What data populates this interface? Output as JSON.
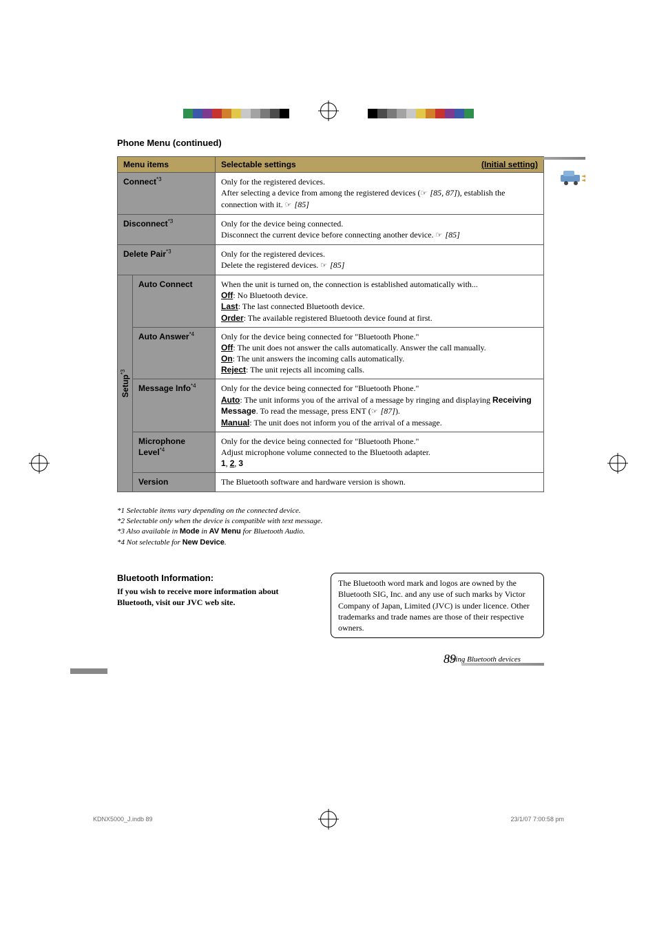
{
  "section_title": "Phone Menu (continued)",
  "header": {
    "col1": "Menu items",
    "col2": "Selectable settings",
    "initial": "(Initial setting)"
  },
  "rows": {
    "connect": {
      "label": "Connect",
      "sup": "*3",
      "l1": "Only for the registered devices.",
      "l2a": "After selecting a device from among the registered devices (",
      "l2b": " [85, 87]",
      "l2c": "), establish the connection with it. ",
      "l2d": " [85]"
    },
    "disconnect": {
      "label": "Disconnect",
      "sup": "*3",
      "l1": "Only for the device being connected.",
      "l2a": "Disconnect the current device before connecting another device. ",
      "l2b": " [85]"
    },
    "deletepair": {
      "label": "Delete Pair",
      "sup": "*3",
      "l1": "Only for the registered devices.",
      "l2a": "Delete the registered devices. ",
      "l2b": " [85]"
    },
    "setup_label": "Setup",
    "setup_sup": "*3",
    "autoconnect": {
      "label": "Auto Connect",
      "l1": "When the unit is turned on, the connection is established automatically with...",
      "off_k": "Off",
      "off_v": ": No Bluetooth device.",
      "last_k": "Last",
      "last_v": ": The last connected Bluetooth device.",
      "order_k": "Order",
      "order_v": ": The available registered Bluetooth device found at first."
    },
    "autoanswer": {
      "label": "Auto Answer",
      "sup": "*4",
      "l1": "Only for the device being connected for \"Bluetooth Phone.\"",
      "off_k": "Off",
      "off_v": ": The unit does not answer the calls automatically. Answer the call manually.",
      "on_k": "On",
      "on_v": ": The unit answers the incoming calls automatically.",
      "rej_k": "Reject",
      "rej_v": ": The unit rejects all incoming calls."
    },
    "messageinfo": {
      "label": "Message Info",
      "sup": "*4",
      "l1": "Only for the device being connected for \"Bluetooth Phone.\"",
      "auto_k": "Auto",
      "auto_v1": ": The unit informs you of the arrival of a message by ringing and displaying ",
      "auto_rm": "Receiving Message",
      "auto_v2": ". To read the message, press ENT (",
      "auto_ref": " [87]",
      "auto_v3": ").",
      "man_k": "Manual",
      "man_v": ": The unit does not inform you of the arrival of a message."
    },
    "miclevel": {
      "label1": "Microphone",
      "label2": "Level",
      "sup": "*4",
      "l1": "Only for the device being connected for \"Bluetooth Phone.\"",
      "l2": "Adjust microphone volume connected to the Bluetooth adapter.",
      "vals_a": "1",
      "vals_b": "2",
      "vals_c": "3"
    },
    "version": {
      "label": "Version",
      "l1": "The Bluetooth software and hardware version is shown."
    }
  },
  "footnotes": {
    "f1": "*1  Selectable items vary depending on the connected device.",
    "f2": "*2  Selectable only when the device is compatible with text message.",
    "f3a": "*3  Also available in ",
    "f3b": "Mode",
    "f3c": " in ",
    "f3d": "AV Menu",
    "f3e": " for Bluetooth Audio.",
    "f4a": "*4  Not selectable for ",
    "f4b": "New Device",
    "f4c": "."
  },
  "btinfo": {
    "h": "Bluetooth Information:",
    "b": "If you wish to receive more information about Bluetooth, visit our JVC web site.",
    "box": "The Bluetooth word mark and logos are owned by the Bluetooth SIG, Inc. and any use of such marks by Victor Company of Japan, Limited (JVC) is under licence. Other trademarks and trade names are those of their respective owners."
  },
  "footer": {
    "sub": "Using Bluetooth devices",
    "num": "89"
  },
  "print": {
    "left": "KDNX5000_J.indb   89",
    "right": "23/1/07   7:00:58 pm"
  },
  "colorbar": [
    "#000000",
    "#4b4b4b",
    "#7a7a7a",
    "#a3a3a3",
    "#c8c8c8",
    "#e2c84a",
    "#d07f2a",
    "#c7342f",
    "#7d3a8f",
    "#3b59a8",
    "#2f8f4f",
    "#ffffff"
  ]
}
